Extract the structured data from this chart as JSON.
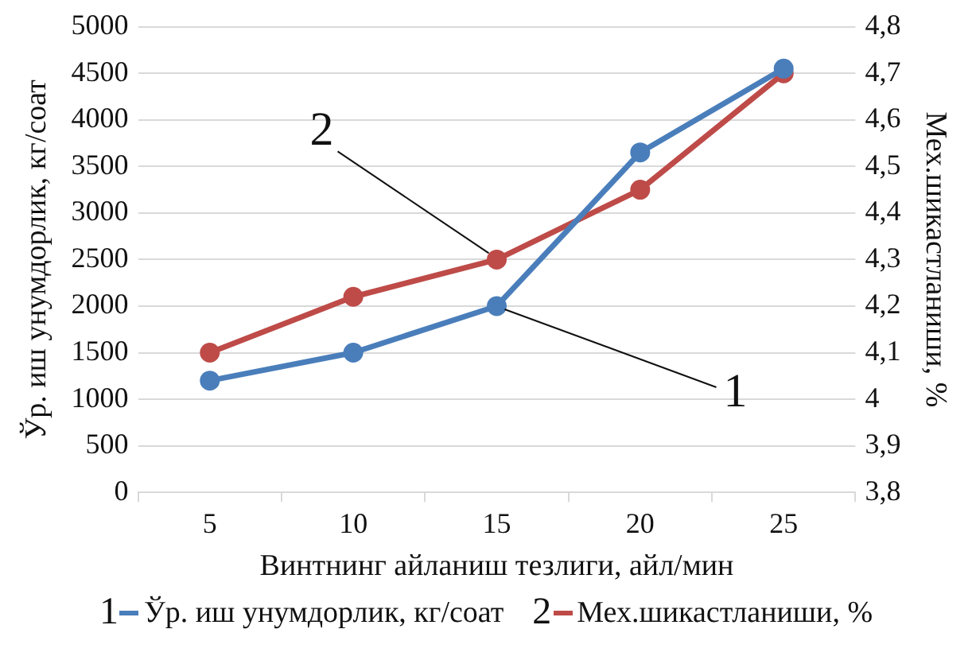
{
  "chart_data": {
    "type": "line",
    "xlabel": "Винтнинг айланиш тезлиги, айл/мин",
    "ylabel": "Ўр. иш унумдорлик, кг/соат",
    "y2label": "Мех.шикастланиши, %",
    "categories": [
      "5",
      "10",
      "15",
      "20",
      "25"
    ],
    "series": [
      {
        "name": "Ўр. иш унумдорлик, кг/соат",
        "color": "#4a7ebb",
        "values": [
          1200,
          1500,
          2000,
          3650,
          4550
        ]
      },
      {
        "name": "Мех.шикастланиши, %",
        "color": "#be4b48",
        "values": [
          4.1,
          4.22,
          4.3,
          4.45,
          4.7
        ],
        "axis": "y2"
      }
    ],
    "ylim": [
      0,
      5000
    ],
    "yticks": [
      0,
      500,
      1000,
      1500,
      2000,
      2500,
      3000,
      3500,
      4000,
      4500,
      5000
    ],
    "y2lim": [
      3.8,
      4.8
    ],
    "y2ticks": [
      {
        "value": 3.8,
        "label": "3,8"
      },
      {
        "value": 3.9,
        "label": "3,9"
      },
      4,
      {
        "value": 4.1,
        "label": "4,1"
      },
      {
        "value": 4.2,
        "label": "4,2"
      },
      {
        "value": 4.3,
        "label": "4,3"
      },
      {
        "value": 4.4,
        "label": "4,4"
      },
      {
        "value": 4.5,
        "label": "4,5"
      },
      {
        "value": 4.6,
        "label": "4,6"
      },
      {
        "value": 4.7,
        "label": "4,7"
      },
      {
        "value": 4.8,
        "label": "4,8"
      }
    ],
    "annotations": [
      {
        "text": "1",
        "x": "15",
        "y": 2000
      },
      {
        "text": "2",
        "x": "15",
        "y": 2500
      }
    ],
    "grid": "y",
    "legend": "bottom",
    "marker": "circle",
    "line_style": "solid"
  }
}
